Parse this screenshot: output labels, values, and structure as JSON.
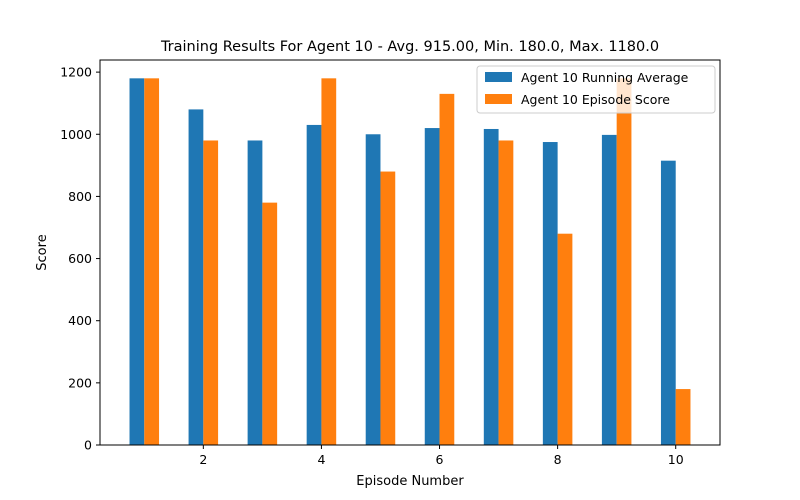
{
  "chart_data": {
    "type": "bar",
    "title": "Training Results For Agent 10 - Avg. 915.00, Min. 180.0, Max. 1180.0",
    "xlabel": "Episode Number",
    "ylabel": "Score",
    "x": [
      1,
      2,
      3,
      4,
      5,
      6,
      7,
      8,
      9,
      10
    ],
    "xlim": [
      0.25,
      10.75
    ],
    "ylim": [
      0,
      1239
    ],
    "xticks": [
      2,
      4,
      6,
      8,
      10
    ],
    "yticks": [
      0,
      200,
      400,
      600,
      800,
      1000,
      1200
    ],
    "grid": false,
    "legend_position": "top-right",
    "series": [
      {
        "name": "Agent 10 Running Average",
        "color": "#1f77b4",
        "values": [
          1180,
          1080,
          980,
          1030,
          1000,
          1020,
          1017,
          975,
          998,
          915
        ]
      },
      {
        "name": "Agent 10 Episode Score",
        "color": "#ff7f0e",
        "values": [
          1180,
          980,
          780,
          1180,
          880,
          1130,
          980,
          680,
          1180,
          180
        ]
      }
    ]
  }
}
